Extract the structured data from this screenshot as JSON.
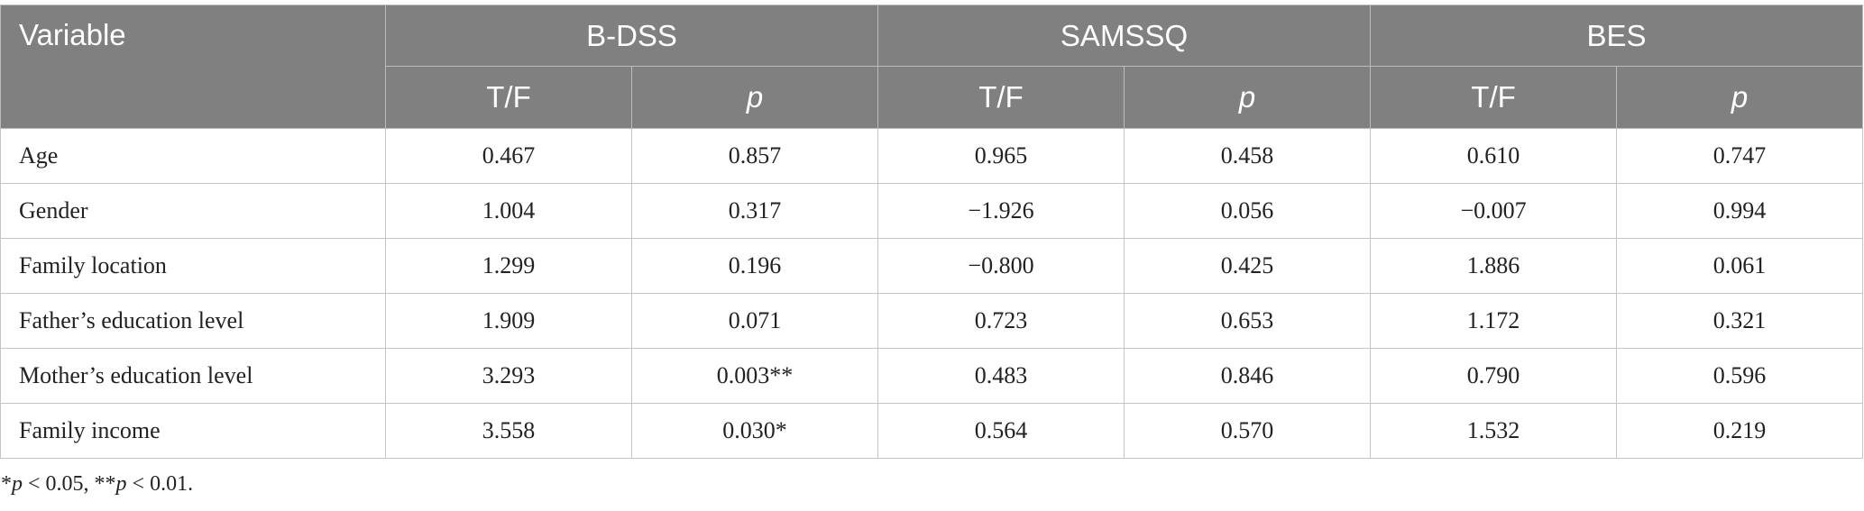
{
  "table": {
    "header": {
      "variable": "Variable",
      "groups": [
        "B-DSS",
        "SAMSSQ",
        "BES"
      ],
      "sub_tf": "T/F",
      "sub_p": "p"
    },
    "rows": [
      {
        "variable": "Age",
        "values": [
          "0.467",
          "0.857",
          "0.965",
          "0.458",
          "0.610",
          "0.747"
        ]
      },
      {
        "variable": "Gender",
        "values": [
          "1.004",
          "0.317",
          "−1.926",
          "0.056",
          "−0.007",
          "0.994"
        ]
      },
      {
        "variable": "Family location",
        "values": [
          "1.299",
          "0.196",
          "−0.800",
          "0.425",
          "1.886",
          "0.061"
        ]
      },
      {
        "variable": "Father’s education level",
        "values": [
          "1.909",
          "0.071",
          "0.723",
          "0.653",
          "1.172",
          "0.321"
        ]
      },
      {
        "variable": "Mother’s education level",
        "values": [
          "3.293",
          "0.003**",
          "0.483",
          "0.846",
          "0.790",
          "0.596"
        ]
      },
      {
        "variable": "Family income",
        "values": [
          "3.558",
          "0.030*",
          "0.564",
          "0.570",
          "1.532",
          "0.219"
        ]
      }
    ]
  },
  "footnote": {
    "star1": "*",
    "p1": "p",
    "rest1": " < 0.05, ",
    "star2": "**",
    "p2": "p",
    "rest2": " < 0.01."
  }
}
